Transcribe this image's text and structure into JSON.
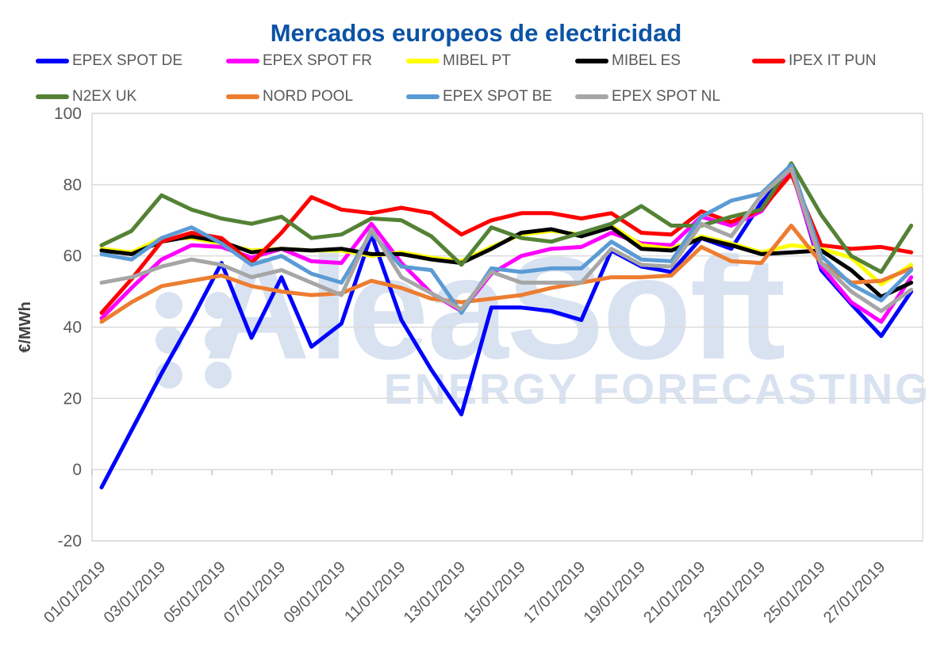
{
  "title": "Mercados europeos de electricidad",
  "watermark": {
    "name": "AleaSoft",
    "subtitle": "ENERGY FORECASTING"
  },
  "colors": {
    "title": "#0B53A5",
    "axis_text": "#595959",
    "gridline": "#D9D9D9",
    "watermark": "#D9E2F1"
  },
  "y_axis": {
    "label": "€/MWh",
    "ticks": [
      100,
      80,
      60,
      40,
      20,
      0,
      -20
    ]
  },
  "x_axis": {
    "tick_labels": [
      "01/01/2019",
      "03/01/2019",
      "05/01/2019",
      "07/01/2019",
      "09/01/2019",
      "11/01/2019",
      "13/01/2019",
      "15/01/2019",
      "17/01/2019",
      "19/01/2019",
      "21/01/2019",
      "23/01/2019",
      "25/01/2019",
      "27/01/2019"
    ]
  },
  "chart_data": {
    "type": "line",
    "title": "Mercados europeos de electricidad",
    "ylabel": "€/MWh",
    "ylim": [
      -20,
      100
    ],
    "grid": true,
    "legend_position": "top",
    "x": [
      "01/01/2019",
      "02/01/2019",
      "03/01/2019",
      "04/01/2019",
      "05/01/2019",
      "06/01/2019",
      "07/01/2019",
      "08/01/2019",
      "09/01/2019",
      "10/01/2019",
      "11/01/2019",
      "12/01/2019",
      "13/01/2019",
      "14/01/2019",
      "15/01/2019",
      "16/01/2019",
      "17/01/2019",
      "18/01/2019",
      "19/01/2019",
      "20/01/2019",
      "21/01/2019",
      "22/01/2019",
      "23/01/2019",
      "24/01/2019",
      "25/01/2019",
      "26/01/2019",
      "27/01/2019",
      "28/01/2019"
    ],
    "series": [
      {
        "name": "EPEX SPOT DE",
        "color": "#0000FF",
        "values": [
          -5,
          11,
          27,
          42,
          58,
          37,
          54,
          34.5,
          41,
          66,
          42,
          28,
          15.5,
          45.5,
          45.5,
          44.5,
          42,
          61.5,
          57,
          55.5,
          65,
          62,
          75,
          84.5,
          56,
          46.5,
          37.5,
          50
        ]
      },
      {
        "name": "EPEX SPOT FR",
        "color": "#FF00FF",
        "values": [
          42.5,
          51,
          59,
          63,
          62.5,
          59.5,
          62,
          58.5,
          58,
          69,
          58,
          49.5,
          44.5,
          55,
          60,
          62,
          62.5,
          66.5,
          63.5,
          63,
          71,
          68.5,
          72.5,
          84,
          57,
          47,
          41.5,
          54
        ]
      },
      {
        "name": "MIBEL PT",
        "color": "#FFFF00",
        "values": [
          62,
          61,
          65,
          65,
          63.5,
          61.5,
          62,
          61.5,
          61.5,
          60,
          61,
          59.5,
          58.5,
          62.5,
          66,
          67,
          66,
          68.5,
          63,
          62,
          65.5,
          63.5,
          61,
          63,
          62,
          59.5,
          52,
          57.5
        ]
      },
      {
        "name": "MIBEL ES",
        "color": "#000000",
        "values": [
          61.5,
          60.5,
          64,
          65.5,
          64,
          61,
          62,
          61.5,
          62,
          60.5,
          60.5,
          59,
          58,
          62,
          66.5,
          67.5,
          65.5,
          68,
          62,
          61.5,
          65,
          63,
          60.5,
          61,
          61.5,
          56,
          48.5,
          52.5
        ]
      },
      {
        "name": "IPEX IT PUN",
        "color": "#FF0000",
        "values": [
          44,
          53.5,
          64,
          66.5,
          65,
          58,
          66.5,
          76.5,
          73,
          72,
          73.5,
          72,
          66,
          70,
          72,
          72,
          70.5,
          72,
          66.5,
          66,
          72.5,
          69.5,
          73,
          83,
          63,
          62,
          62.5,
          61
        ]
      },
      {
        "name": "N2EX UK",
        "color": "#548235",
        "values": [
          63,
          67,
          77,
          73,
          70.5,
          69,
          71,
          65,
          66,
          70.5,
          70,
          65.5,
          57.5,
          68,
          65,
          64,
          66.5,
          69,
          74,
          68.5,
          68.5,
          71,
          73,
          86,
          71.5,
          60,
          55.5,
          68.5
        ]
      },
      {
        "name": "NORD POOL",
        "color": "#ED7D31",
        "values": [
          41.5,
          47,
          51.5,
          53,
          54.5,
          51.5,
          50,
          49,
          49.5,
          53,
          51,
          48,
          47,
          48,
          49,
          51,
          52.5,
          54,
          54,
          54.5,
          62.5,
          58.5,
          58,
          68.5,
          58,
          52.5,
          53,
          56.5
        ]
      },
      {
        "name": "EPEX SPOT BE",
        "color": "#5B9BD5",
        "values": [
          60.5,
          59,
          65,
          68,
          63.5,
          57.5,
          60,
          55,
          52.5,
          66.5,
          57,
          56,
          44,
          56.5,
          55.5,
          56.5,
          56.5,
          64,
          59,
          58.5,
          71,
          75.5,
          77.5,
          85.5,
          60,
          52,
          47.5,
          56
        ]
      },
      {
        "name": "EPEX SPOT NL",
        "color": "#A6A6A6",
        "values": [
          52.5,
          54,
          57,
          59,
          57.5,
          54,
          56,
          52.5,
          49,
          67.5,
          54,
          49.5,
          45,
          55.5,
          52.5,
          52.5,
          52.5,
          62,
          57.5,
          57,
          69,
          65.5,
          77,
          84.5,
          58,
          50,
          44.5,
          50.5
        ]
      }
    ]
  },
  "legend": {
    "items": [
      "EPEX SPOT DE",
      "EPEX SPOT FR",
      "MIBEL PT",
      "MIBEL ES",
      "IPEX IT PUN",
      "N2EX UK",
      "NORD POOL",
      "EPEX SPOT BE",
      "EPEX SPOT NL"
    ]
  }
}
